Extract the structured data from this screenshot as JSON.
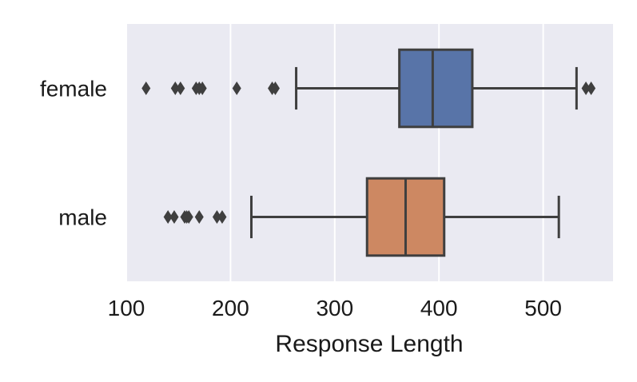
{
  "chart_data": {
    "type": "boxplot",
    "orientation": "horizontal",
    "title": "",
    "xlabel": "Response Length",
    "ylabel": "",
    "xlim": [
      100,
      567
    ],
    "x_ticks": [
      100,
      200,
      300,
      400,
      500
    ],
    "grid": true,
    "background": "#eaeaf2",
    "categories": [
      "female",
      "male"
    ],
    "series": [
      {
        "category": "female",
        "color": "#5874a8",
        "whisker_low": 263,
        "q1": 362,
        "median": 394,
        "q3": 432,
        "whisker_high": 532,
        "outliers": [
          119,
          147,
          152,
          167,
          170,
          173,
          206,
          240,
          243,
          541,
          546
        ]
      },
      {
        "category": "male",
        "color": "#cd8862",
        "whisker_low": 220,
        "q1": 331,
        "median": 368,
        "q3": 405,
        "whisker_high": 515,
        "outliers": [
          140,
          146,
          156,
          158,
          160,
          170,
          187,
          192
        ]
      }
    ]
  }
}
